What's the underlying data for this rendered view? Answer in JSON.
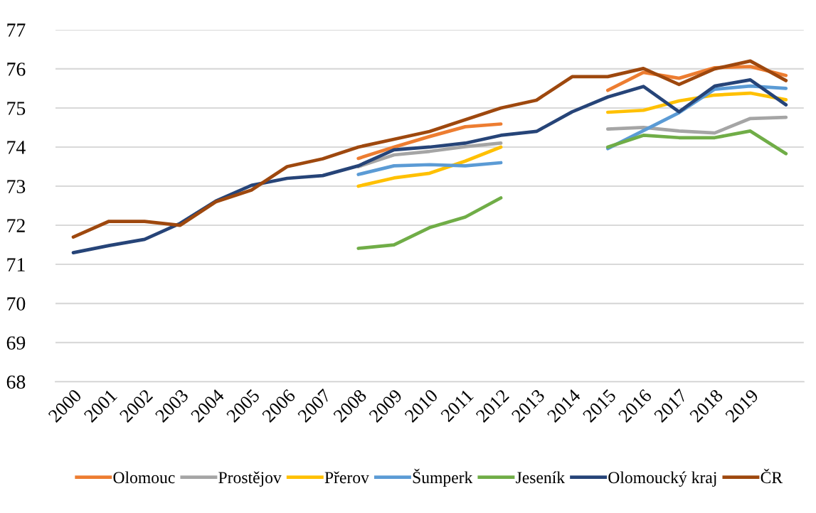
{
  "chart_data": {
    "type": "line",
    "categories": [
      "2000",
      "2001",
      "2002",
      "2003",
      "2004",
      "2005",
      "2006",
      "2007",
      "2008",
      "2009",
      "2010",
      "2011",
      "2012",
      "2013",
      "2014",
      "2015",
      "2016",
      "2017",
      "2018",
      "2019",
      null
    ],
    "series": [
      {
        "name": "Olomouc",
        "color": "#ed7d31",
        "values": [
          null,
          null,
          null,
          null,
          null,
          null,
          null,
          null,
          73.71,
          74.0,
          74.27,
          74.52,
          74.59,
          null,
          null,
          75.45,
          75.91,
          75.76,
          76.03,
          76.06,
          75.83
        ]
      },
      {
        "name": "Prostějov",
        "color": "#a5a5a5",
        "values": [
          null,
          null,
          null,
          null,
          null,
          null,
          null,
          null,
          73.5,
          73.8,
          73.89,
          74.01,
          74.1,
          null,
          null,
          74.46,
          74.5,
          74.41,
          74.36,
          74.73,
          74.76
        ]
      },
      {
        "name": "Přerov",
        "color": "#ffc000",
        "values": [
          null,
          null,
          null,
          null,
          null,
          null,
          null,
          null,
          73.0,
          73.21,
          73.33,
          73.64,
          74.0,
          null,
          null,
          74.89,
          74.94,
          75.18,
          75.33,
          75.38,
          75.21
        ]
      },
      {
        "name": "Šumperk",
        "color": "#5b9bd5",
        "values": [
          null,
          null,
          null,
          null,
          null,
          null,
          null,
          null,
          73.3,
          73.52,
          73.55,
          73.52,
          73.6,
          null,
          null,
          73.96,
          74.42,
          74.88,
          75.48,
          75.56,
          75.5
        ]
      },
      {
        "name": "Jeseník",
        "color": "#70ad47",
        "values": [
          null,
          null,
          null,
          null,
          null,
          null,
          null,
          null,
          71.41,
          71.5,
          71.94,
          72.21,
          72.7,
          null,
          null,
          74.0,
          74.3,
          74.24,
          74.24,
          74.41,
          73.83
        ]
      },
      {
        "name": "Olomoucký kraj",
        "color": "#264478",
        "values": [
          71.3,
          71.48,
          71.64,
          72.05,
          72.62,
          73.02,
          73.2,
          73.27,
          73.52,
          73.93,
          74.0,
          74.1,
          74.3,
          74.4,
          74.9,
          75.28,
          75.55,
          74.9,
          75.56,
          75.72,
          75.08
        ]
      },
      {
        "name": "ČR",
        "color": "#9e480e",
        "values": [
          71.7,
          72.1,
          72.1,
          72.0,
          72.6,
          72.9,
          73.5,
          73.7,
          74.0,
          74.2,
          74.4,
          74.7,
          75.0,
          75.2,
          75.8,
          75.8,
          76.01,
          75.6,
          76.0,
          76.2,
          75.7
        ]
      }
    ],
    "ylim": [
      68,
      77
    ],
    "yticks": [
      68,
      69,
      70,
      71,
      72,
      73,
      74,
      75,
      76,
      77
    ],
    "grid": "y",
    "legend": "bottom",
    "marker": "none",
    "line_style": "solid"
  }
}
